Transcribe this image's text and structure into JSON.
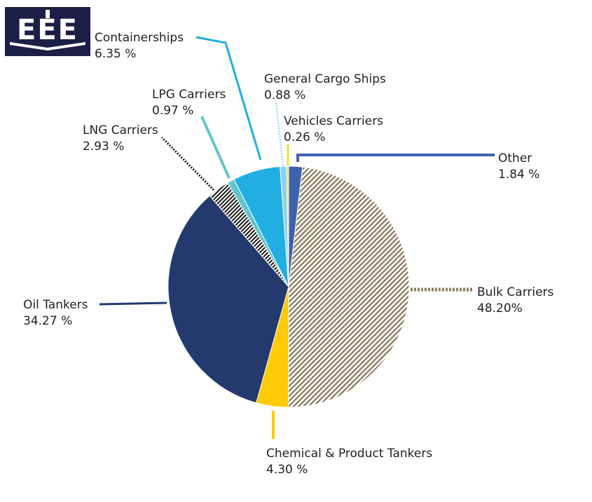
{
  "logo": {
    "text": "EEE",
    "name": "company-logo"
  },
  "colors": {
    "oil_tankers": "#243a6e",
    "chemical_product_tankers": "#ffca06",
    "bulk_carriers": "#8c7f63",
    "other": "#3f62ad",
    "vehicles_carriers": "#e6e628",
    "general_cargo_ships": "#8fd1f0",
    "containerships": "#21aee3",
    "lpg_carriers": "#5fc6cc",
    "lng_carriers": "#1a1a1a",
    "logo_bg": "#1c1f45"
  },
  "chart_data": {
    "type": "pie",
    "title": "",
    "slices": [
      {
        "label": "Other",
        "value_text": "1.84 %",
        "value": 1.84,
        "color_key": "other",
        "pattern": "solid"
      },
      {
        "label": "Bulk Carriers",
        "value_text": "48.20%",
        "value": 48.2,
        "color_key": "bulk_carriers",
        "pattern": "diagonal-stripes"
      },
      {
        "label": "Chemical & Product Tankers",
        "value_text": "4.30 %",
        "value": 4.3,
        "color_key": "chemical_product_tankers",
        "pattern": "solid"
      },
      {
        "label": "Oil Tankers",
        "value_text": "34.27 %",
        "value": 34.27,
        "color_key": "oil_tankers",
        "pattern": "solid"
      },
      {
        "label": "LNG Carriers",
        "value_text": "2.93 %",
        "value": 2.93,
        "color_key": "lng_carriers",
        "pattern": "diagonal-stripes"
      },
      {
        "label": "LPG Carriers",
        "value_text": "0.97 %",
        "value": 0.97,
        "color_key": "lpg_carriers",
        "pattern": "solid"
      },
      {
        "label": "Containerships",
        "value_text": "6.35 %",
        "value": 6.35,
        "color_key": "containerships",
        "pattern": "solid"
      },
      {
        "label": "General Cargo Ships",
        "value_text": "0.88 %",
        "value": 0.88,
        "color_key": "general_cargo_ships",
        "pattern": "solid"
      },
      {
        "label": "Vehicles Carriers",
        "value_text": "0.26 %",
        "value": 0.26,
        "color_key": "vehicles_carriers",
        "pattern": "solid"
      }
    ],
    "legend": "callout-labels"
  }
}
